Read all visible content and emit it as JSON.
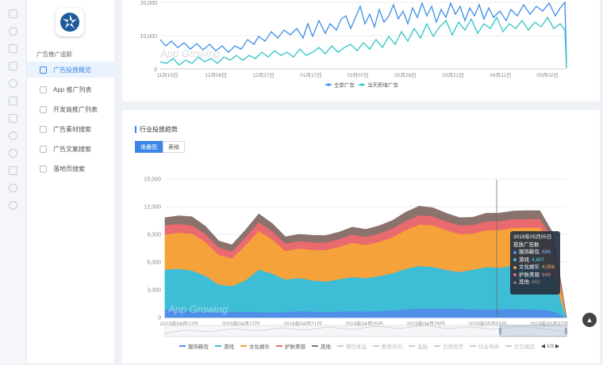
{
  "sidebar": {
    "group_label": "广告推广追踪",
    "items": [
      {
        "label": "广告投放概览",
        "active": true
      },
      {
        "label": "App 推广列表",
        "active": false
      },
      {
        "label": "开发商推广列表",
        "active": false
      },
      {
        "label": "广告素材搜索",
        "active": false
      },
      {
        "label": "广告文案搜索",
        "active": false
      },
      {
        "label": "落地页搜索",
        "active": false
      }
    ]
  },
  "top_chart_data": {
    "type": "line",
    "x_ticks": [
      "11月15日",
      "12月06日",
      "12月27日",
      "01月17日",
      "02月07日",
      "02月28日",
      "03月21日",
      "04月11日",
      "05月02日"
    ],
    "y_ticks": [
      "0",
      "10,000",
      "20,000"
    ],
    "ylim": [
      0,
      25000
    ],
    "series": [
      {
        "name": "全部广告",
        "color": "#3a8ee6"
      },
      {
        "name": "当天新增广告",
        "color": "#2ec4c4"
      }
    ]
  },
  "chart_data": {
    "type": "area",
    "title": "行业投放趋势",
    "toggle": [
      "堆叠图",
      "表格"
    ],
    "x_ticks": [
      "2019年04月13日",
      "2019年04月17日",
      "2019年04月21日",
      "2019年04月25日",
      "2019年04月29日",
      "2019年05月03日",
      "2019年05月07日"
    ],
    "y_ticks": [
      "0",
      "3,000",
      "6,000",
      "9,000",
      "12,000",
      "15,000"
    ],
    "ylim": [
      0,
      15000
    ],
    "series": [
      {
        "name": "服饰鞋包",
        "color": "#4f8fe8",
        "values": [
          900,
          800,
          700,
          650,
          600,
          620,
          640,
          600,
          580,
          620,
          700,
          650,
          620,
          660,
          700,
          680,
          720,
          800,
          900,
          1000,
          1000,
          980,
          950,
          900,
          880,
          900,
          950,
          920,
          886,
          700,
          0
        ]
      },
      {
        "name": "游戏",
        "color": "#3ebdd6",
        "values": [
          4300,
          4500,
          4400,
          3900,
          3000,
          2800,
          3400,
          4600,
          4200,
          3500,
          3600,
          3400,
          3300,
          3500,
          3700,
          3600,
          3800,
          4000,
          4400,
          4600,
          4500,
          4200,
          4000,
          4300,
          4600,
          4500,
          4700,
          4750,
          4807,
          3800,
          0
        ]
      },
      {
        "name": "文化娱乐",
        "color": "#f5a23a",
        "values": [
          3800,
          3900,
          4000,
          3700,
          3200,
          3000,
          3800,
          4200,
          3700,
          3100,
          3200,
          3300,
          3400,
          3500,
          3700,
          3600,
          3700,
          3900,
          4200,
          4500,
          4500,
          4300,
          4100,
          3900,
          4000,
          4100,
          4050,
          4080,
          4056,
          3300,
          0
        ]
      },
      {
        "name": "护肤美容",
        "color": "#e96a6f",
        "values": [
          1000,
          950,
          900,
          850,
          800,
          780,
          850,
          950,
          900,
          800,
          800,
          820,
          820,
          840,
          900,
          880,
          900,
          950,
          1000,
          1000,
          980,
          960,
          950,
          940,
          950,
          960,
          950,
          950,
          949,
          700,
          0
        ]
      },
      {
        "name": "其他",
        "color": "#8a726d",
        "values": [
          800,
          850,
          900,
          800,
          700,
          650,
          750,
          850,
          800,
          700,
          700,
          720,
          720,
          740,
          780,
          770,
          800,
          850,
          900,
          950,
          900,
          850,
          800,
          800,
          850,
          850,
          860,
          860,
          862,
          600,
          0
        ]
      }
    ],
    "inactive_series": [
      "餐饮食品",
      "教育培训",
      "金融",
      "日用百货",
      "综合电商",
      "社交婚恋"
    ],
    "legend_page": "1/3",
    "tooltip": {
      "date": "2019年05月05日",
      "heading": "投放广告数",
      "rows": [
        {
          "name": "服饰鞋包",
          "value": "886",
          "color": "#4f8fe8"
        },
        {
          "name": "游戏",
          "value": "4,807",
          "color": "#3ebdd6"
        },
        {
          "name": "文化娱乐",
          "value": "4,056",
          "color": "#f5a23a"
        },
        {
          "name": "护肤美容",
          "value": "949",
          "color": "#e96a6f"
        },
        {
          "name": "其他",
          "value": "862",
          "color": "#8a726d"
        }
      ]
    }
  },
  "watermark": "App Growing"
}
